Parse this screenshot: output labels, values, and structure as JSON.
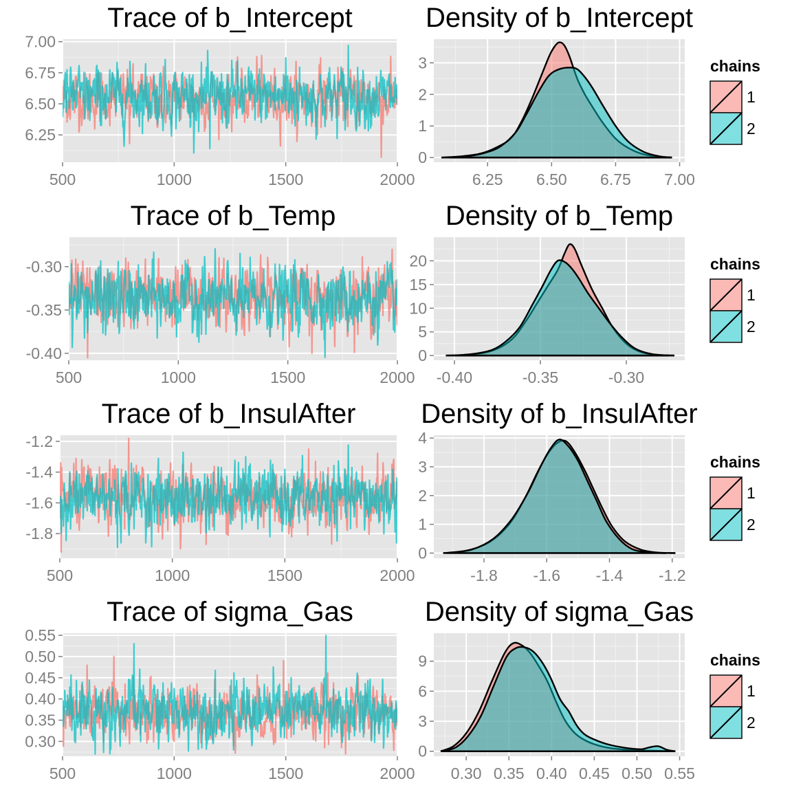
{
  "chart_data": [
    {
      "type": "line",
      "title": "Trace of b_Intercept",
      "xlim": [
        500,
        2000
      ],
      "ylim": [
        6.03,
        7.02
      ],
      "x_ticks": [
        500,
        1000,
        1500,
        2000
      ],
      "x_tick_labels": [
        "500",
        "1000",
        "1500",
        "2000"
      ],
      "y_ticks": [
        6.25,
        6.5,
        6.75,
        7.0
      ],
      "y_tick_labels": [
        "6.25",
        "6.50",
        "6.75",
        "7.00"
      ],
      "grid": true,
      "series": [
        {
          "name": "1",
          "color": "#F8766D",
          "mean": 6.55,
          "sd": 0.11,
          "x_range": [
            500,
            2000
          ],
          "extremes": [
            [
              1928,
              6.07
            ],
            [
              800,
              6.18
            ],
            [
              1370,
              6.88
            ],
            [
              1655,
              6.87
            ]
          ]
        },
        {
          "name": "2",
          "color": "#00BFC4",
          "mean": 6.56,
          "sd": 0.12,
          "x_range": [
            500,
            2000
          ],
          "extremes": [
            [
              1780,
              6.97
            ],
            [
              1160,
              6.14
            ],
            [
              1500,
              6.87
            ]
          ]
        }
      ]
    },
    {
      "type": "area",
      "title": "Density of b_Intercept",
      "xlim": [
        6.04,
        7.02
      ],
      "ylim": [
        -0.15,
        3.75
      ],
      "x_ticks": [
        6.25,
        6.5,
        6.75,
        7.0
      ],
      "x_tick_labels": [
        "6.25",
        "6.50",
        "6.75",
        "7.00"
      ],
      "y_ticks": [
        0,
        1,
        2,
        3
      ],
      "y_tick_labels": [
        "0",
        "1",
        "2",
        "3"
      ],
      "grid": true,
      "series": [
        {
          "name": "1",
          "color": "#F8766D",
          "x": [
            6.07,
            6.15,
            6.22,
            6.28,
            6.34,
            6.38,
            6.42,
            6.46,
            6.49,
            6.51,
            6.53,
            6.55,
            6.57,
            6.6,
            6.63,
            6.66,
            6.7,
            6.75,
            6.8,
            6.86,
            6.93,
            6.97
          ],
          "y": [
            0.0,
            0.04,
            0.12,
            0.3,
            0.6,
            1.1,
            1.8,
            2.6,
            3.2,
            3.5,
            3.65,
            3.55,
            3.2,
            2.5,
            2.0,
            1.6,
            1.1,
            0.6,
            0.3,
            0.1,
            0.02,
            0.0
          ]
        },
        {
          "name": "2",
          "color": "#00BFC4",
          "x": [
            6.1,
            6.18,
            6.24,
            6.3,
            6.36,
            6.4,
            6.45,
            6.49,
            6.53,
            6.57,
            6.6,
            6.63,
            6.66,
            6.7,
            6.75,
            6.8,
            6.86,
            6.92,
            6.97
          ],
          "y": [
            0.0,
            0.05,
            0.15,
            0.35,
            0.8,
            1.35,
            2.1,
            2.6,
            2.8,
            2.85,
            2.8,
            2.55,
            2.2,
            1.65,
            1.0,
            0.5,
            0.18,
            0.04,
            0.0
          ]
        }
      ]
    },
    {
      "type": "line",
      "title": "Trace of b_Temp",
      "xlim": [
        500,
        2000
      ],
      "ylim": [
        -0.408,
        -0.266
      ],
      "x_ticks": [
        500,
        1000,
        1500,
        2000
      ],
      "x_tick_labels": [
        "500",
        "1000",
        "1500",
        "2000"
      ],
      "y_ticks": [
        -0.4,
        -0.35,
        -0.3
      ],
      "y_tick_labels": [
        "-0.40",
        "-0.35",
        "-0.30"
      ],
      "grid": true,
      "series": [
        {
          "name": "1",
          "color": "#F8766D",
          "mean": -0.334,
          "sd": 0.018,
          "x_range": [
            500,
            2000
          ],
          "extremes": [
            [
              1975,
              -0.28
            ],
            [
              585,
              -0.405
            ],
            [
              1610,
              -0.4
            ],
            [
              760,
              -0.29
            ]
          ]
        },
        {
          "name": "2",
          "color": "#00BFC4",
          "mean": -0.338,
          "sd": 0.019,
          "x_range": [
            500,
            2000
          ],
          "extremes": [
            [
              1110,
              -0.3
            ],
            [
              1105,
              -0.378
            ],
            [
              1525,
              -0.298
            ]
          ]
        }
      ]
    },
    {
      "type": "area",
      "title": "Density of b_Temp",
      "xlim": [
        -0.412,
        -0.266
      ],
      "ylim": [
        -1.0,
        25.0
      ],
      "x_ticks": [
        -0.4,
        -0.35,
        -0.3
      ],
      "x_tick_labels": [
        "-0.40",
        "-0.35",
        "-0.30"
      ],
      "y_ticks": [
        0,
        5,
        10,
        15,
        20
      ],
      "y_tick_labels": [
        "0",
        "5",
        "10",
        "15",
        "20"
      ],
      "grid": true,
      "series": [
        {
          "name": "1",
          "color": "#F8766D",
          "x": [
            -0.405,
            -0.39,
            -0.38,
            -0.372,
            -0.365,
            -0.358,
            -0.352,
            -0.346,
            -0.34,
            -0.336,
            -0.333,
            -0.33,
            -0.326,
            -0.32,
            -0.314,
            -0.308,
            -0.3,
            -0.292,
            -0.282,
            -0.275
          ],
          "y": [
            0.0,
            0.2,
            0.8,
            2.0,
            4.0,
            7.5,
            11.0,
            14.5,
            18.0,
            21.5,
            23.5,
            22.5,
            19.0,
            14.0,
            10.0,
            6.0,
            2.5,
            0.8,
            0.1,
            0.0
          ]
        },
        {
          "name": "2",
          "color": "#00BFC4",
          "x": [
            -0.4,
            -0.388,
            -0.378,
            -0.37,
            -0.362,
            -0.355,
            -0.349,
            -0.344,
            -0.34,
            -0.336,
            -0.332,
            -0.328,
            -0.322,
            -0.316,
            -0.31,
            -0.303,
            -0.295,
            -0.285,
            -0.272
          ],
          "y": [
            0.0,
            0.4,
            1.2,
            3.0,
            6.0,
            10.5,
            14.5,
            18.0,
            20.0,
            19.8,
            18.5,
            16.5,
            13.0,
            10.0,
            7.0,
            4.0,
            1.5,
            0.3,
            0.0
          ]
        }
      ]
    },
    {
      "type": "line",
      "title": "Trace of b_InsulAfter",
      "xlim": [
        500,
        2000
      ],
      "ylim": [
        -1.96,
        -1.16
      ],
      "x_ticks": [
        500,
        1000,
        1500,
        2000
      ],
      "x_tick_labels": [
        "500",
        "1000",
        "1500",
        "2000"
      ],
      "y_ticks": [
        -1.8,
        -1.6,
        -1.4,
        -1.2
      ],
      "y_tick_labels": [
        "-1.8",
        "-1.6",
        "-1.4",
        "-1.2"
      ],
      "grid": true,
      "series": [
        {
          "name": "1",
          "color": "#F8766D",
          "mean": -1.56,
          "sd": 0.1,
          "x_range": [
            500,
            2000
          ],
          "extremes": [
            [
              805,
              -1.18
            ],
            [
              505,
              -1.92
            ],
            [
              1605,
              -1.25
            ],
            [
              1150,
              -1.87
            ]
          ]
        },
        {
          "name": "2",
          "color": "#00BFC4",
          "mean": -1.57,
          "sd": 0.1,
          "x_range": [
            500,
            2000
          ],
          "extremes": [
            [
              755,
              -1.89
            ],
            [
              1325,
              -1.3
            ],
            [
              1995,
              -1.86
            ]
          ]
        }
      ]
    },
    {
      "type": "area",
      "title": "Density of b_InsulAfter",
      "xlim": [
        -1.96,
        -1.16
      ],
      "ylim": [
        -0.18,
        4.1
      ],
      "x_ticks": [
        -1.8,
        -1.6,
        -1.4,
        -1.2
      ],
      "x_tick_labels": [
        "-1.8",
        "-1.6",
        "-1.4",
        "-1.2"
      ],
      "y_ticks": [
        0,
        1,
        2,
        3,
        4
      ],
      "y_tick_labels": [
        "0",
        "1",
        "2",
        "3",
        "4"
      ],
      "grid": true,
      "series": [
        {
          "name": "1",
          "color": "#F8766D",
          "x": [
            -1.93,
            -1.85,
            -1.78,
            -1.72,
            -1.67,
            -1.63,
            -1.6,
            -1.57,
            -1.54,
            -1.51,
            -1.48,
            -1.45,
            -1.42,
            -1.39,
            -1.35,
            -1.3,
            -1.25,
            -1.19
          ],
          "y": [
            0.0,
            0.1,
            0.4,
            1.0,
            1.9,
            2.8,
            3.4,
            3.8,
            3.9,
            3.5,
            2.9,
            2.2,
            1.5,
            0.9,
            0.4,
            0.12,
            0.02,
            0.0
          ]
        },
        {
          "name": "2",
          "color": "#00BFC4",
          "x": [
            -1.92,
            -1.84,
            -1.77,
            -1.71,
            -1.66,
            -1.62,
            -1.59,
            -1.56,
            -1.53,
            -1.5,
            -1.47,
            -1.44,
            -1.41,
            -1.37,
            -1.33,
            -1.28,
            -1.22
          ],
          "y": [
            0.0,
            0.12,
            0.5,
            1.2,
            2.1,
            3.0,
            3.6,
            3.95,
            3.7,
            3.2,
            2.5,
            1.8,
            1.1,
            0.5,
            0.15,
            0.03,
            0.0
          ]
        }
      ]
    },
    {
      "type": "line",
      "title": "Trace of sigma_Gas",
      "xlim": [
        500,
        2000
      ],
      "ylim": [
        0.265,
        0.555
      ],
      "x_ticks": [
        500,
        1000,
        1500,
        2000
      ],
      "x_tick_labels": [
        "500",
        "1000",
        "1500",
        "2000"
      ],
      "y_ticks": [
        0.3,
        0.35,
        0.4,
        0.45,
        0.5,
        0.55
      ],
      "y_tick_labels": [
        "0.30",
        "0.35",
        "0.40",
        "0.45",
        "0.50",
        "0.55"
      ],
      "grid": true,
      "series": [
        {
          "name": "1",
          "color": "#F8766D",
          "mean": 0.368,
          "sd": 0.033,
          "x_range": [
            500,
            2000
          ],
          "extremes": [
            [
              730,
              0.5
            ],
            [
              1490,
              0.49
            ],
            [
              1000,
              0.3
            ]
          ]
        },
        {
          "name": "2",
          "color": "#00BFC4",
          "mean": 0.372,
          "sd": 0.036,
          "x_range": [
            500,
            2000
          ],
          "extremes": [
            [
              1680,
              0.55
            ],
            [
              820,
              0.53
            ],
            [
              645,
              0.27
            ],
            [
              1265,
              0.28
            ]
          ]
        }
      ]
    },
    {
      "type": "area",
      "title": "Density of sigma_Gas",
      "xlim": [
        0.262,
        0.556
      ],
      "ylim": [
        -0.5,
        11.8
      ],
      "x_ticks": [
        0.3,
        0.35,
        0.4,
        0.45,
        0.5,
        0.55
      ],
      "x_tick_labels": [
        "0.30",
        "0.35",
        "0.40",
        "0.45",
        "0.50",
        "0.55"
      ],
      "y_ticks": [
        0,
        3,
        6,
        9
      ],
      "y_tick_labels": [
        "0",
        "3",
        "6",
        "9"
      ],
      "grid": true,
      "series": [
        {
          "name": "1",
          "color": "#F8766D",
          "x": [
            0.27,
            0.285,
            0.3,
            0.315,
            0.33,
            0.345,
            0.355,
            0.365,
            0.375,
            0.385,
            0.395,
            0.405,
            0.415,
            0.425,
            0.435,
            0.45,
            0.47,
            0.5,
            0.52,
            0.545
          ],
          "y": [
            0.0,
            0.5,
            1.8,
            4.0,
            7.0,
            9.8,
            10.8,
            10.6,
            9.8,
            8.5,
            7.0,
            5.0,
            3.2,
            2.0,
            1.3,
            0.7,
            0.3,
            0.1,
            0.05,
            0.0
          ]
        },
        {
          "name": "2",
          "color": "#00BFC4",
          "x": [
            0.272,
            0.288,
            0.302,
            0.317,
            0.332,
            0.347,
            0.358,
            0.368,
            0.378,
            0.388,
            0.398,
            0.41,
            0.42,
            0.43,
            0.44,
            0.455,
            0.47,
            0.49,
            0.505,
            0.515,
            0.525,
            0.535,
            0.545
          ],
          "y": [
            0.0,
            0.4,
            1.5,
            3.5,
            6.5,
            9.4,
            10.3,
            10.4,
            10.0,
            9.0,
            7.5,
            5.2,
            4.0,
            2.5,
            1.6,
            1.0,
            0.6,
            0.3,
            0.2,
            0.4,
            0.5,
            0.15,
            0.0
          ]
        }
      ]
    }
  ],
  "legends": [
    {
      "title": "chains",
      "items": [
        "1",
        "2"
      ]
    },
    {
      "title": "chains",
      "items": [
        "1",
        "2"
      ]
    },
    {
      "title": "chains",
      "items": [
        "1",
        "2"
      ]
    },
    {
      "title": "chains",
      "items": [
        "1",
        "2"
      ]
    }
  ],
  "colors": {
    "panel_background": "#E5E5E5",
    "grid_major": "#FFFFFF",
    "grid_minor": "#F2F2F2",
    "chain_1": "#F8766D",
    "chain_2": "#00BFC4"
  }
}
